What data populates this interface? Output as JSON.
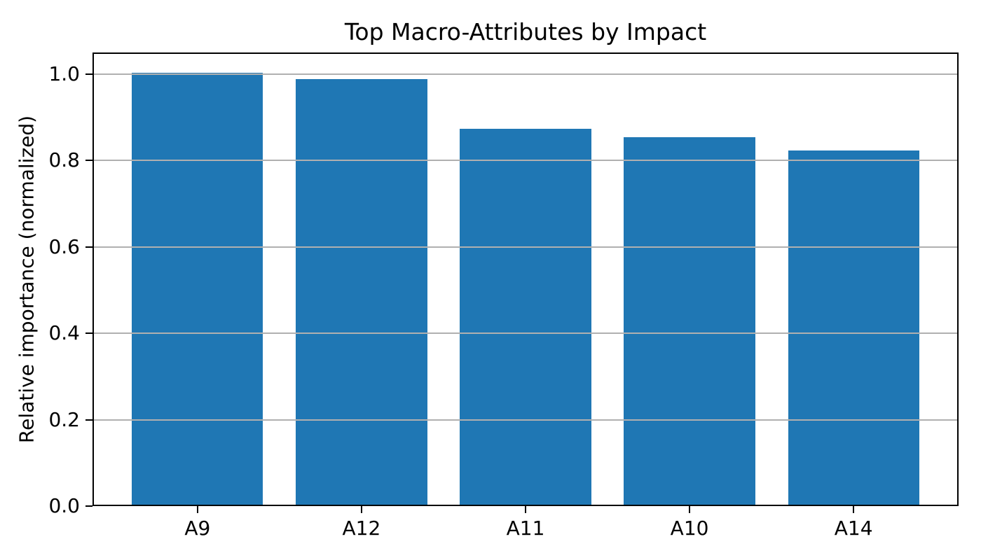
{
  "chart_data": {
    "type": "bar",
    "title": "Top Macro-Attributes by Impact",
    "xlabel": "",
    "ylabel": "Relative importance (normalized)",
    "categories": [
      "A9",
      "A12",
      "A11",
      "A10",
      "A14"
    ],
    "values": [
      1.0,
      0.985,
      0.87,
      0.85,
      0.82
    ],
    "yticks": [
      0.0,
      0.2,
      0.4,
      0.6,
      0.8,
      1.0
    ],
    "ytick_labels": [
      "0.0",
      "0.2",
      "0.4",
      "0.6",
      "0.8",
      "1.0"
    ],
    "ylim": [
      0,
      1.05
    ],
    "grid": "horizontal-over-bars",
    "legend_position": "none",
    "bar_color": "#1f77b4",
    "grid_color": "#b0b0b0",
    "axis_color": "#000000",
    "background_color": "#ffffff"
  }
}
